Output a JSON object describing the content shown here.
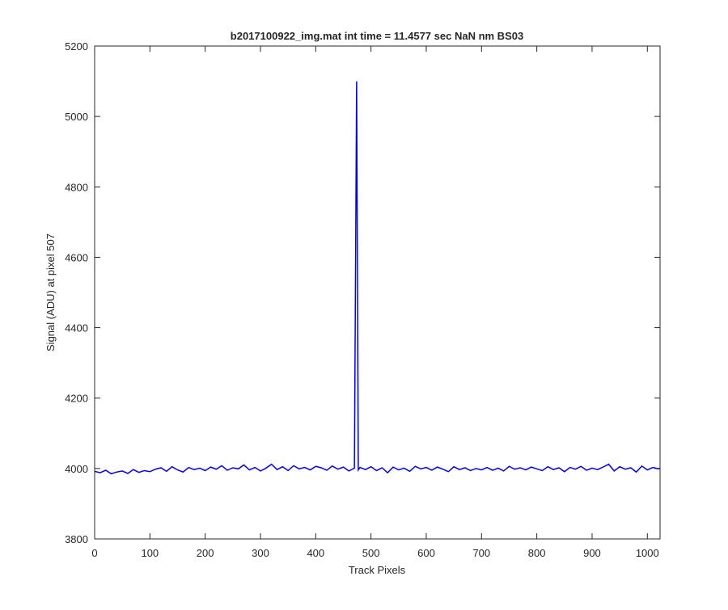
{
  "chart_data": {
    "type": "line",
    "title": "b2017100922_img.mat int time = 11.4577 sec  NaN nm BS03",
    "x_label": "Track Pixels",
    "y_label": "Signal (ADU) at pixel 507",
    "xlim": [
      0,
      1023
    ],
    "ylim": [
      3800,
      5200
    ],
    "xticks": [
      0,
      100,
      200,
      300,
      400,
      500,
      600,
      700,
      800,
      900,
      1000
    ],
    "yticks": [
      3800,
      4000,
      4200,
      4400,
      4600,
      4800,
      5000,
      5200
    ],
    "grid": false,
    "x": [
      0,
      10,
      20,
      30,
      40,
      50,
      60,
      70,
      80,
      90,
      100,
      110,
      120,
      130,
      140,
      150,
      160,
      170,
      180,
      190,
      200,
      210,
      220,
      230,
      240,
      250,
      260,
      270,
      280,
      290,
      300,
      310,
      320,
      330,
      340,
      350,
      360,
      370,
      380,
      390,
      400,
      410,
      420,
      430,
      440,
      450,
      460,
      470,
      474,
      477,
      480,
      490,
      500,
      510,
      520,
      530,
      540,
      550,
      560,
      570,
      580,
      590,
      600,
      610,
      620,
      630,
      640,
      650,
      660,
      670,
      680,
      690,
      700,
      710,
      720,
      730,
      740,
      750,
      760,
      770,
      780,
      790,
      800,
      810,
      820,
      830,
      840,
      850,
      860,
      870,
      880,
      890,
      900,
      910,
      920,
      930,
      940,
      950,
      960,
      970,
      980,
      990,
      1000,
      1010,
      1020,
      1023
    ],
    "series": [
      {
        "name": "signal",
        "color": "#0000ff",
        "values": [
          3992,
          3988,
          3995,
          3985,
          3990,
          3993,
          3986,
          3997,
          3989,
          3994,
          3991,
          3998,
          4002,
          3992,
          4005,
          3996,
          3990,
          4003,
          3997,
          4001,
          3994,
          4004,
          3998,
          4008,
          3995,
          4002,
          3999,
          4010,
          3996,
          4003,
          3993,
          4001,
          4012,
          3997,
          4005,
          3994,
          4008,
          3999,
          4003,
          3996,
          4006,
          4002,
          3995,
          4007,
          3998,
          4004,
          3993,
          4001,
          5100,
          3996,
          4003,
          3997,
          4005,
          3994,
          4002,
          3988,
          4004,
          3996,
          4001,
          3992,
          4006,
          3999,
          4003,
          3995,
          4004,
          3998,
          3991,
          4005,
          3997,
          4002,
          3994,
          4000,
          3996,
          4003,
          3995,
          4001,
          3993,
          4006,
          3998,
          4002,
          3996,
          4004,
          3999,
          3994,
          4005,
          3997,
          4002,
          3991,
          4003,
          3998,
          4006,
          3995,
          4001,
          3997,
          4004,
          4012,
          3993,
          4005,
          3998,
          4002,
          3990,
          4007,
          3996,
          4003,
          3999,
          4001
        ]
      }
    ]
  }
}
